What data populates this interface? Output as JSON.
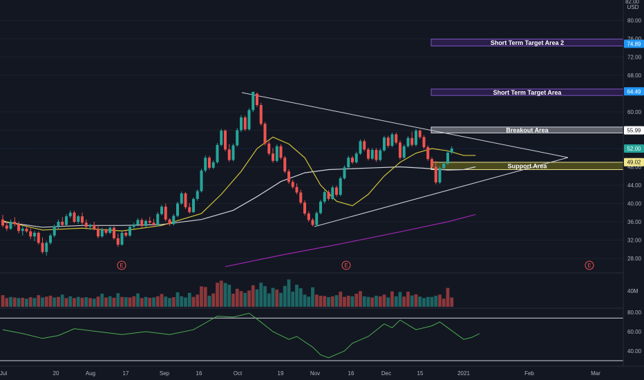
{
  "price_axis": {
    "currency": "USD",
    "ticks": [
      "80.00",
      "76.00",
      "72.00",
      "68.00",
      "60.00",
      "56.00",
      "48.00",
      "44.00",
      "40.00",
      "36.00",
      "32.00",
      "28.00"
    ],
    "tick_values": [
      80,
      76,
      72,
      68,
      60,
      56,
      48,
      44,
      40,
      36,
      32,
      28
    ]
  },
  "price_tags": [
    {
      "label": "74.89",
      "value": 74.89,
      "color": "#2196f3",
      "text_color": "#ffffff"
    },
    {
      "label": "64.49",
      "value": 64.49,
      "color": "#2196f3",
      "text_color": "#ffffff"
    },
    {
      "label": "55.99",
      "value": 55.99,
      "color": "#ffffff",
      "text_color": "#131722"
    },
    {
      "label": "52.00",
      "value": 52.0,
      "color": "#26a69a",
      "text_color": "#ffffff"
    },
    {
      "label": "49.02",
      "value": 49.02,
      "color": "#f0e68c",
      "text_color": "#131722"
    }
  ],
  "zones": [
    {
      "label": "Short Term Target Area 2",
      "top": 75.9,
      "bottom": 74.4,
      "fill": "#2a1e4a",
      "stroke": "#7e57c2"
    },
    {
      "label": "Short Term Target Area",
      "top": 65.0,
      "bottom": 63.6,
      "fill": "#2a1e4a",
      "stroke": "#7e57c2"
    },
    {
      "label": "Breakout Area",
      "top": 56.7,
      "bottom": 55.4,
      "fill": "#5d6068",
      "stroke": "#d1d4dc"
    },
    {
      "label": "Support Area",
      "top": 49.0,
      "bottom": 47.4,
      "fill": "#4a4a1e",
      "stroke": "#f0e68c"
    }
  ],
  "volume_axis": {
    "label": "40M"
  },
  "rsi_axis": {
    "ticks": [
      "80.00",
      "60.00",
      "40.00"
    ],
    "tick_values": [
      80,
      60,
      40
    ]
  },
  "time_axis": {
    "labels": [
      "Jul",
      "20",
      "Aug",
      "17",
      "Sep",
      "16",
      "Oct",
      "19",
      "Nov",
      "16",
      "Dec",
      "15",
      "2021",
      "Feb",
      "Mar"
    ]
  },
  "earnings_markers": [
    "E",
    "E",
    "E"
  ],
  "colors": {
    "up": "#26a69a",
    "down": "#ef5350",
    "ema_short": "#d4c53a",
    "ema_long": "#d1d4dc",
    "ema_200": "#9c27b0",
    "trendline": "#d1d4dc",
    "background": "#131722"
  },
  "chart_data": {
    "type": "candlestick",
    "title": "",
    "y_range": [
      25,
      83
    ],
    "candles": [
      [
        36.5,
        37.5,
        34.8,
        35.2
      ],
      [
        35.2,
        36,
        34,
        34.5
      ],
      [
        34.5,
        36.5,
        34.2,
        36
      ],
      [
        36,
        37,
        35,
        35.5
      ],
      [
        35.5,
        36,
        33.5,
        34
      ],
      [
        34,
        35,
        33,
        34.5
      ],
      [
        34.5,
        35.2,
        33.6,
        33.9
      ],
      [
        33.9,
        34.6,
        32.2,
        32.8
      ],
      [
        32.8,
        34,
        31.8,
        33.6
      ],
      [
        33.6,
        33.9,
        31,
        31.4
      ],
      [
        31.4,
        32.6,
        29,
        29.4
      ],
      [
        29.4,
        31.8,
        28.6,
        31.4
      ],
      [
        31.4,
        33.4,
        31,
        33
      ],
      [
        33,
        35.4,
        32.6,
        35
      ],
      [
        35,
        36.5,
        34.4,
        36
      ],
      [
        36,
        37,
        35,
        35.3
      ],
      [
        35.3,
        37.7,
        35,
        37.2
      ],
      [
        37.2,
        38.5,
        36.8,
        38
      ],
      [
        38,
        38.4,
        35.7,
        36
      ],
      [
        36,
        37.5,
        35.5,
        37.2
      ],
      [
        37.2,
        38,
        35.4,
        35.8
      ],
      [
        35.8,
        36.5,
        34.6,
        34.9
      ],
      [
        34.9,
        35.6,
        34.2,
        35.3
      ],
      [
        35.3,
        36,
        34.1,
        34.4
      ],
      [
        34.4,
        35.2,
        32.4,
        32.8
      ],
      [
        32.8,
        34.7,
        32.5,
        34.3
      ],
      [
        34.3,
        34.6,
        33.2,
        33.6
      ],
      [
        33.6,
        35,
        33.3,
        34.7
      ],
      [
        34.7,
        35,
        32.1,
        32.4
      ],
      [
        32.4,
        33.4,
        30.5,
        31
      ],
      [
        31,
        33.9,
        30.8,
        33.6
      ],
      [
        33.6,
        34,
        32.6,
        33
      ],
      [
        33,
        35.2,
        32.7,
        34.9
      ],
      [
        34.9,
        35.8,
        34.5,
        35.4
      ],
      [
        35.4,
        36.8,
        35,
        36.4
      ],
      [
        36.4,
        36.8,
        34.7,
        35.1
      ],
      [
        35.1,
        36.5,
        34.8,
        36.2
      ],
      [
        36.2,
        37.1,
        35.5,
        35.8
      ],
      [
        35.8,
        36.6,
        34.9,
        35.3
      ],
      [
        35.3,
        38.1,
        35,
        37.7
      ],
      [
        37.7,
        39.7,
        37.4,
        39.3
      ],
      [
        39.3,
        40,
        36.1,
        36.5
      ],
      [
        36.5,
        36.8,
        35.1,
        35.5
      ],
      [
        35.5,
        37.7,
        35.2,
        37.3
      ],
      [
        37.3,
        40.4,
        37,
        40
      ],
      [
        40,
        42.6,
        39.7,
        42.2
      ],
      [
        42.2,
        42.5,
        38.8,
        39.2
      ],
      [
        39.2,
        40.1,
        37.8,
        38.1
      ],
      [
        38.1,
        41.3,
        37.9,
        41
      ],
      [
        41,
        43.1,
        40.6,
        42.7
      ],
      [
        42.7,
        47.6,
        42.4,
        47.2
      ],
      [
        47.2,
        50.5,
        46.8,
        50
      ],
      [
        50,
        50.4,
        47.4,
        47.8
      ],
      [
        47.8,
        49.4,
        47.5,
        49
      ],
      [
        49,
        53.2,
        48.7,
        52.8
      ],
      [
        52.8,
        56.3,
        52.5,
        55.9
      ],
      [
        55.9,
        56.2,
        51.4,
        51.8
      ],
      [
        51.8,
        53,
        49.1,
        49.5
      ],
      [
        49.5,
        53.1,
        49.2,
        52.7
      ],
      [
        52.7,
        56.5,
        52.4,
        56
      ],
      [
        56,
        59.3,
        55.6,
        58.8
      ],
      [
        58.8,
        59.2,
        55.8,
        56.2
      ],
      [
        56.2,
        60.8,
        55.9,
        60.4
      ],
      [
        60.4,
        64.4,
        60,
        64.4
      ],
      [
        64,
        64.2,
        61.1,
        61.5
      ],
      [
        61.5,
        62,
        57,
        57.4
      ],
      [
        57.4,
        57.8,
        52.7,
        53.1
      ],
      [
        53.1,
        53.6,
        50.5,
        50.9
      ],
      [
        50.9,
        52.1,
        48.9,
        49.3
      ],
      [
        49.3,
        52.9,
        49,
        52.5
      ],
      [
        52.5,
        52.9,
        49.6,
        50
      ],
      [
        50,
        50.4,
        46.6,
        47
      ],
      [
        47,
        47.5,
        44.3,
        44.7
      ],
      [
        44.7,
        45.2,
        43.2,
        43.6
      ],
      [
        43.6,
        44.4,
        42,
        42.4
      ],
      [
        42.4,
        43,
        39.8,
        40.2
      ],
      [
        40.2,
        40.7,
        37.4,
        37.8
      ],
      [
        37.8,
        38.3,
        36,
        36.4
      ],
      [
        36.4,
        36.8,
        35,
        35.3
      ],
      [
        35.3,
        38.3,
        35,
        37.9
      ],
      [
        37.9,
        40.8,
        37.6,
        40.4
      ],
      [
        40.4,
        42.9,
        40,
        42.5
      ],
      [
        42.5,
        42.9,
        40.6,
        41
      ],
      [
        41,
        43.9,
        40.7,
        43.5
      ],
      [
        43.5,
        43.9,
        41.5,
        41.9
      ],
      [
        41.9,
        45.9,
        41.6,
        45.5
      ],
      [
        45.5,
        48.3,
        45.2,
        47.9
      ],
      [
        47.9,
        50.4,
        47.6,
        50
      ],
      [
        50,
        50.4,
        48.6,
        49
      ],
      [
        49,
        51.3,
        48.7,
        50.9
      ],
      [
        50.9,
        54,
        50.6,
        53.6
      ],
      [
        53.6,
        54,
        51.4,
        51.8
      ],
      [
        51.8,
        52.2,
        49.4,
        49.8
      ],
      [
        49.8,
        52.1,
        49.5,
        51.7
      ],
      [
        51.7,
        52.1,
        49.1,
        49.5
      ],
      [
        49.5,
        52,
        49.2,
        51.6
      ],
      [
        51.6,
        54.8,
        51.3,
        54.4
      ],
      [
        54.4,
        54.8,
        52.2,
        52.6
      ],
      [
        52.6,
        55.5,
        52.3,
        55.1
      ],
      [
        55.1,
        55.5,
        52.9,
        53.3
      ],
      [
        53.3,
        53.8,
        49.6,
        50
      ],
      [
        50,
        52.9,
        49.8,
        52.5
      ],
      [
        52.5,
        54.7,
        52.2,
        54.3
      ],
      [
        54.3,
        55.7,
        52.4,
        52.8
      ],
      [
        52.8,
        56.3,
        52.5,
        55.9
      ],
      [
        55.9,
        56.2,
        54.1,
        54.5
      ],
      [
        54.5,
        54.9,
        51.9,
        52.3
      ],
      [
        52.3,
        52.7,
        49.3,
        49.7
      ],
      [
        49.7,
        50.1,
        47.6,
        48
      ],
      [
        48,
        49.3,
        44.2,
        44.6
      ],
      [
        44.6,
        48.1,
        44.3,
        47.7
      ],
      [
        47.7,
        49.1,
        47.4,
        48.7
      ],
      [
        48.7,
        51.5,
        48.5,
        51.1
      ],
      [
        51.1,
        52.5,
        50.8,
        52
      ]
    ],
    "ema_short": [
      [
        0,
        36.2
      ],
      [
        10,
        34.2
      ],
      [
        20,
        34.6
      ],
      [
        30,
        34
      ],
      [
        40,
        35.2
      ],
      [
        50,
        37.8
      ],
      [
        55,
        42
      ],
      [
        60,
        47
      ],
      [
        64,
        52
      ],
      [
        68,
        54.5
      ],
      [
        72,
        53
      ],
      [
        76,
        50
      ],
      [
        80,
        44
      ],
      [
        84,
        40.5
      ],
      [
        88,
        39.5
      ],
      [
        92,
        42
      ],
      [
        96,
        46
      ],
      [
        100,
        49
      ],
      [
        104,
        51
      ],
      [
        108,
        52
      ],
      [
        112,
        51.5
      ],
      [
        116,
        50.5
      ],
      [
        119,
        50.5
      ]
    ],
    "ema_long": [
      [
        0,
        36
      ],
      [
        10,
        34.8
      ],
      [
        20,
        35.2
      ],
      [
        30,
        35.2
      ],
      [
        40,
        35.4
      ],
      [
        50,
        36.5
      ],
      [
        58,
        38.5
      ],
      [
        64,
        41.5
      ],
      [
        70,
        44.8
      ],
      [
        76,
        46.7
      ],
      [
        82,
        47.4
      ],
      [
        88,
        47.6
      ],
      [
        94,
        47.8
      ],
      [
        100,
        48
      ],
      [
        106,
        47.7
      ],
      [
        112,
        47.3
      ],
      [
        116,
        47.4
      ],
      [
        119,
        48
      ]
    ],
    "ema_200": [
      [
        56,
        26.2
      ],
      [
        70,
        28.7
      ],
      [
        84,
        31
      ],
      [
        100,
        33.8
      ],
      [
        112,
        36
      ],
      [
        119,
        37.6
      ]
    ],
    "volume": [
      [
        4,
        0
      ],
      [
        3,
        0
      ],
      [
        3.4,
        1
      ],
      [
        3.2,
        0
      ],
      [
        3,
        1
      ],
      [
        3.1,
        0
      ],
      [
        2.8,
        1
      ],
      [
        3.3,
        0
      ],
      [
        3,
        1
      ],
      [
        4,
        0
      ],
      [
        3.2,
        1
      ],
      [
        3.5,
        0
      ],
      [
        3.8,
        0
      ],
      [
        3.2,
        1
      ],
      [
        3.4,
        0
      ],
      [
        4.2,
        1
      ],
      [
        3,
        0
      ],
      [
        3.6,
        1
      ],
      [
        3,
        0
      ],
      [
        3.4,
        1
      ],
      [
        3.1,
        0
      ],
      [
        3.3,
        1
      ],
      [
        3,
        0
      ],
      [
        2.8,
        1
      ],
      [
        3.5,
        0
      ],
      [
        4.5,
        1
      ],
      [
        3.2,
        0
      ],
      [
        3.6,
        1
      ],
      [
        3.1,
        0
      ],
      [
        4.7,
        1
      ],
      [
        3.4,
        0
      ],
      [
        3.3,
        1
      ],
      [
        3.2,
        0
      ],
      [
        3.6,
        0
      ],
      [
        4.6,
        1
      ],
      [
        3,
        0
      ],
      [
        3.4,
        1
      ],
      [
        3.1,
        0
      ],
      [
        3.2,
        1
      ],
      [
        3.6,
        0
      ],
      [
        4.4,
        0
      ],
      [
        3.5,
        1
      ],
      [
        3,
        1
      ],
      [
        3.3,
        0
      ],
      [
        5,
        1
      ],
      [
        3.6,
        1
      ],
      [
        3.2,
        1
      ],
      [
        4.8,
        1
      ],
      [
        3.4,
        0
      ],
      [
        4.2,
        0
      ],
      [
        7,
        0
      ],
      [
        6.8,
        0
      ],
      [
        3.8,
        1
      ],
      [
        4.6,
        0
      ],
      [
        8.3,
        0
      ],
      [
        9,
        0
      ],
      [
        8.2,
        1
      ],
      [
        7.6,
        1
      ],
      [
        4.5,
        0
      ],
      [
        6.2,
        0
      ],
      [
        5.4,
        0
      ],
      [
        4.8,
        1
      ],
      [
        5.6,
        0
      ],
      [
        7.4,
        0
      ],
      [
        6,
        1
      ],
      [
        8.3,
        1
      ],
      [
        7.1,
        1
      ],
      [
        4.6,
        1
      ],
      [
        6.5,
        1
      ],
      [
        5.9,
        0
      ],
      [
        4.8,
        1
      ],
      [
        7.2,
        1
      ],
      [
        9.4,
        1
      ],
      [
        5.2,
        1
      ],
      [
        7.6,
        1
      ],
      [
        6.4,
        1
      ],
      [
        4.2,
        1
      ],
      [
        3.5,
        1
      ],
      [
        6.7,
        1
      ],
      [
        4.2,
        0
      ],
      [
        3.8,
        0
      ],
      [
        3.7,
        0
      ],
      [
        3.3,
        1
      ],
      [
        3.6,
        0
      ],
      [
        4,
        1
      ],
      [
        5.2,
        0
      ],
      [
        3.4,
        0
      ],
      [
        3.8,
        0
      ],
      [
        3.6,
        1
      ],
      [
        4.5,
        0
      ],
      [
        5.4,
        0
      ],
      [
        3.6,
        1
      ],
      [
        3.4,
        1
      ],
      [
        3.2,
        0
      ],
      [
        3.8,
        1
      ],
      [
        3.6,
        0
      ],
      [
        4.2,
        0
      ],
      [
        3.2,
        1
      ],
      [
        5.3,
        0
      ],
      [
        3.6,
        1
      ],
      [
        5.1,
        1
      ],
      [
        3.5,
        0
      ],
      [
        5.2,
        0
      ],
      [
        3.9,
        1
      ],
      [
        4.3,
        0
      ],
      [
        3.5,
        1
      ],
      [
        3,
        1
      ],
      [
        3.4,
        1
      ],
      [
        3.4,
        1
      ],
      [
        3.8,
        1
      ],
      [
        4.2,
        0
      ],
      [
        2.8,
        0
      ],
      [
        6.5,
        0
      ],
      [
        3.2,
        0
      ]
    ],
    "rsi": [
      [
        0,
        62
      ],
      [
        5,
        58
      ],
      [
        10,
        53
      ],
      [
        14,
        56
      ],
      [
        18,
        63
      ],
      [
        24,
        60
      ],
      [
        30,
        57
      ],
      [
        36,
        60
      ],
      [
        42,
        57
      ],
      [
        48,
        62
      ],
      [
        54,
        76
      ],
      [
        58,
        75
      ],
      [
        62,
        79
      ],
      [
        64,
        73
      ],
      [
        68,
        60
      ],
      [
        72,
        52
      ],
      [
        74,
        55
      ],
      [
        78,
        44
      ],
      [
        80,
        36
      ],
      [
        82,
        33
      ],
      [
        86,
        40
      ],
      [
        88,
        48
      ],
      [
        92,
        55
      ],
      [
        96,
        68
      ],
      [
        98,
        64
      ],
      [
        100,
        72
      ],
      [
        104,
        62
      ],
      [
        108,
        66
      ],
      [
        110,
        70
      ],
      [
        114,
        58
      ],
      [
        116,
        52
      ],
      [
        118,
        54
      ],
      [
        120,
        58
      ]
    ]
  }
}
